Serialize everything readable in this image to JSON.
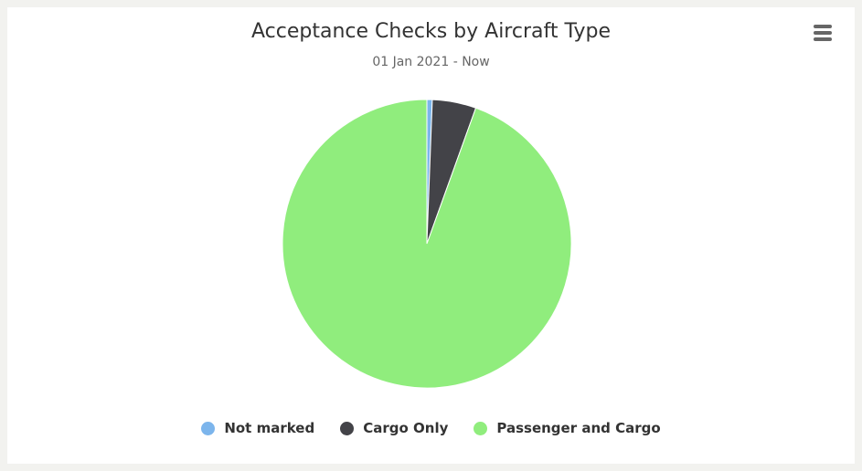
{
  "chart_data": {
    "type": "pie",
    "title": "Acceptance Checks by Aircraft Type",
    "subtitle": "01 Jan 2021 - Now",
    "categories": [
      "Not marked",
      "Cargo Only",
      "Passenger and Cargo"
    ],
    "values": [
      0.6,
      4.9,
      94.5
    ],
    "colors": [
      "#7cb5ec",
      "#434348",
      "#90ed7d"
    ],
    "legend_position": "bottom-center"
  },
  "menu": {
    "icon": "hamburger-menu-icon"
  }
}
